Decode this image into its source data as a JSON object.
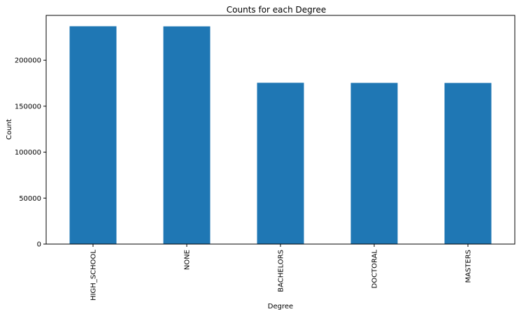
{
  "chart_data": {
    "type": "bar",
    "title": "Counts for each Degree",
    "xlabel": "Degree",
    "ylabel": "Count",
    "categories": [
      "HIGH_SCHOOL",
      "NONE",
      "BACHELORS",
      "DOCTORAL",
      "MASTERS"
    ],
    "values": [
      236975,
      236854,
      175495,
      175364,
      175311
    ],
    "ylim": [
      0,
      248800
    ],
    "yticks": [
      0,
      50000,
      100000,
      150000,
      200000
    ],
    "ytick_labels": [
      "0",
      "50000",
      "100000",
      "150000",
      "200000"
    ],
    "grid": false,
    "bar_color": "#1f77b4"
  }
}
